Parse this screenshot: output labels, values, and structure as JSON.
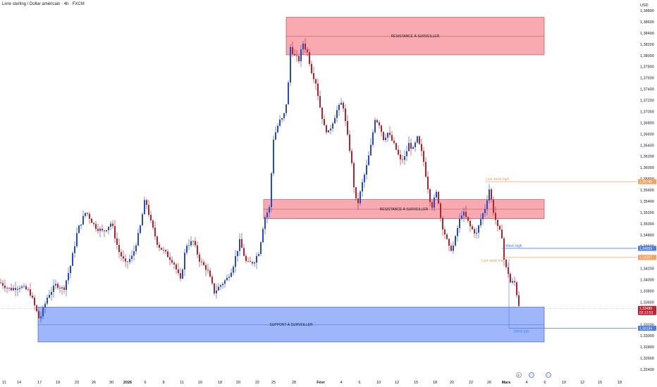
{
  "header": {
    "title": "Livre sterling / Dollar américain · 4h · FXCM"
  },
  "axis": {
    "currency_label": "USD"
  },
  "chart_data": {
    "type": "candlestick",
    "title": "Livre sterling / Dollar américain · 4h · FXCM",
    "ylim": [
      1.3225,
      1.389
    ],
    "y_ticks": [
      "1,38800",
      "1,38600",
      "1,38400",
      "1,38200",
      "1,38000",
      "1,37800",
      "1,37600",
      "1,37400",
      "1,37200",
      "1,37000",
      "1,36800",
      "1,36600",
      "1,36400",
      "1,36200",
      "1,36000",
      "1,35800",
      "1,35600",
      "1,35400",
      "1,35200",
      "1,35000",
      "1,34800",
      "1,34600",
      "1,34400",
      "1,34200",
      "1,34000",
      "1,33800",
      "1,33600",
      "1,33400",
      "1,33200",
      "1,33000",
      "1,32800",
      "1,32600",
      "1,32400"
    ],
    "x_ticks": [
      "11",
      "14",
      "17",
      "19",
      "23",
      "26",
      "30",
      "2026",
      "6",
      "8",
      "11",
      "16",
      "18",
      "20",
      "22",
      "25",
      "28",
      "Févr",
      "4",
      "6",
      "10",
      "12",
      "15",
      "18",
      "20",
      "22",
      "26",
      "Mars",
      "4",
      "6",
      "10",
      "12",
      "15",
      "18"
    ],
    "zones": [
      {
        "label": "RÉSISTANCE À SURVEILLER",
        "top": 1.3868,
        "bottom": 1.3801,
        "color": "#f8a1a8"
      },
      {
        "label": "RÉSISTANCE À SURVEILLER",
        "top": 1.3543,
        "bottom": 1.3509,
        "color": "#f8a1a8"
      },
      {
        "label": "SUPPORT À SURVEILLER",
        "top": 1.3351,
        "bottom": 1.3289,
        "color": "#93aef9"
      }
    ],
    "levels": [
      {
        "label": "Last week high",
        "value": 1.35749,
        "tag": "1,35749",
        "color": "#f5a15f"
      },
      {
        "label": "Week high",
        "value": 1.34559,
        "tag": "1,34559",
        "color": "#4d7bf0"
      },
      {
        "label": "Last week low",
        "value": 1.34397,
        "tag": "1,34397",
        "color": "#f5a15f"
      },
      {
        "label": "Week low",
        "value": 1.33134,
        "tag": "1,33134",
        "color": "#4d7bf0"
      }
    ],
    "last_price": {
      "value": 1.33488,
      "tag": "1,33488",
      "countdown": "02:12:53",
      "color": "#c7202e"
    },
    "candle_colors": {
      "up": "#2449c9",
      "down": "#b1232f"
    },
    "close_path": [
      [
        0,
        1.3395
      ],
      [
        14,
        1.3383
      ],
      [
        28,
        1.3388
      ],
      [
        42,
        1.3379
      ],
      [
        56,
        1.3328
      ],
      [
        68,
        1.3372
      ],
      [
        80,
        1.3392
      ],
      [
        90,
        1.3382
      ],
      [
        100,
        1.3425
      ],
      [
        110,
        1.3488
      ],
      [
        122,
        1.3522
      ],
      [
        134,
        1.3496
      ],
      [
        146,
        1.3485
      ],
      [
        158,
        1.3502
      ],
      [
        168,
        1.3452
      ],
      [
        178,
        1.3428
      ],
      [
        188,
        1.3442
      ],
      [
        198,
        1.3488
      ],
      [
        206,
        1.3545
      ],
      [
        214,
        1.3502
      ],
      [
        224,
        1.3462
      ],
      [
        234,
        1.3448
      ],
      [
        246,
        1.3432
      ],
      [
        256,
        1.3398
      ],
      [
        264,
        1.3462
      ],
      [
        274,
        1.3468
      ],
      [
        284,
        1.3432
      ],
      [
        294,
        1.3418
      ],
      [
        304,
        1.3378
      ],
      [
        314,
        1.3392
      ],
      [
        322,
        1.3402
      ],
      [
        330,
        1.3422
      ],
      [
        340,
        1.3468
      ],
      [
        350,
        1.3428
      ],
      [
        360,
        1.3432
      ],
      [
        368,
        1.3452
      ],
      [
        372,
        1.3488
      ],
      [
        376,
        1.3512
      ],
      [
        382,
        1.3528
      ],
      [
        388,
        1.3652
      ],
      [
        396,
        1.3682
      ],
      [
        402,
        1.3688
      ],
      [
        408,
        1.3728
      ],
      [
        412,
        1.3815
      ],
      [
        418,
        1.3798
      ],
      [
        424,
        1.3792
      ],
      [
        430,
        1.3822
      ],
      [
        436,
        1.3805
      ],
      [
        442,
        1.3772
      ],
      [
        448,
        1.3752
      ],
      [
        454,
        1.3708
      ],
      [
        460,
        1.3672
      ],
      [
        466,
        1.3662
      ],
      [
        472,
        1.3682
      ],
      [
        478,
        1.3702
      ],
      [
        486,
        1.3718
      ],
      [
        492,
        1.3662
      ],
      [
        498,
        1.3618
      ],
      [
        504,
        1.3542
      ],
      [
        508,
        1.3538
      ],
      [
        514,
        1.3572
      ],
      [
        520,
        1.3602
      ],
      [
        526,
        1.3638
      ],
      [
        532,
        1.3688
      ],
      [
        538,
        1.3678
      ],
      [
        544,
        1.3652
      ],
      [
        550,
        1.3662
      ],
      [
        556,
        1.3648
      ],
      [
        562,
        1.3632
      ],
      [
        568,
        1.3612
      ],
      [
        574,
        1.3618
      ],
      [
        580,
        1.3642
      ],
      [
        586,
        1.3632
      ],
      [
        592,
        1.3652
      ],
      [
        600,
        1.3618
      ],
      [
        606,
        1.3572
      ],
      [
        612,
        1.3528
      ],
      [
        620,
        1.3558
      ],
      [
        626,
        1.3502
      ],
      [
        632,
        1.3478
      ],
      [
        638,
        1.3452
      ],
      [
        644,
        1.3462
      ],
      [
        650,
        1.3498
      ],
      [
        656,
        1.3522
      ],
      [
        662,
        1.3508
      ],
      [
        668,
        1.3492
      ],
      [
        676,
        1.3482
      ],
      [
        682,
        1.3508
      ],
      [
        688,
        1.3528
      ],
      [
        694,
        1.3562
      ],
      [
        700,
        1.3522
      ],
      [
        706,
        1.3492
      ],
      [
        712,
        1.3478
      ],
      [
        716,
        1.3422
      ],
      [
        720,
        1.3418
      ],
      [
        724,
        1.3395
      ],
      [
        730,
        1.3395
      ],
      [
        734,
        1.3368
      ],
      [
        737,
        1.3349
      ]
    ]
  }
}
